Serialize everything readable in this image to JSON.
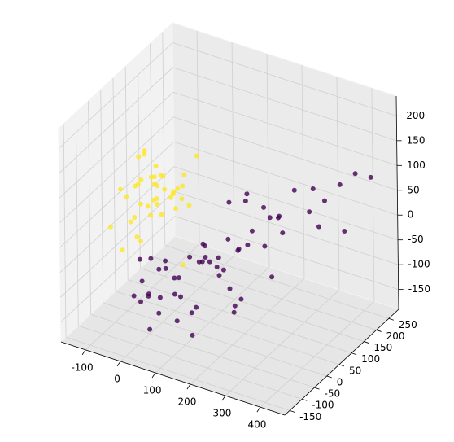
{
  "chart_data": {
    "type": "scatter3d",
    "xlim": [
      -170,
      470
    ],
    "ylim": [
      -170,
      290
    ],
    "zlim": [
      -190,
      240
    ],
    "xticks": [
      -100,
      0,
      100,
      200,
      300,
      400
    ],
    "yticks": [
      -150,
      -100,
      -50,
      0,
      50,
      100,
      150,
      200,
      250
    ],
    "zticks": [
      -150,
      -100,
      -50,
      0,
      50,
      100,
      150,
      200
    ],
    "grid": true,
    "series": [
      {
        "color": "#440154",
        "x": [
          20,
          50,
          80,
          110,
          140,
          170,
          200,
          230,
          260,
          290,
          0,
          30,
          60,
          90,
          120,
          150,
          180,
          210,
          240,
          10,
          40,
          70,
          100,
          130,
          160,
          190,
          220,
          -20,
          5,
          35,
          65,
          95,
          125,
          155,
          185,
          215,
          245,
          275,
          310,
          340,
          370,
          400,
          430,
          60,
          90,
          120,
          150,
          -10,
          25,
          55,
          85,
          115,
          145,
          175,
          205,
          235,
          265,
          300,
          330,
          360
        ],
        "y": [
          -40,
          -20,
          0,
          20,
          -60,
          10,
          30,
          -30,
          50,
          80,
          -80,
          -50,
          -10,
          40,
          60,
          -90,
          20,
          70,
          100,
          -100,
          -70,
          -30,
          10,
          90,
          120,
          40,
          -20,
          -60,
          -120,
          -100,
          -40,
          30,
          0,
          50,
          80,
          110,
          130,
          150,
          160,
          180,
          200,
          220,
          240,
          -70,
          -110,
          -50,
          20,
          -30,
          -90,
          -130,
          -60,
          60,
          -10,
          100,
          30,
          140,
          70,
          190,
          170,
          230
        ],
        "z": [
          -60,
          -80,
          -40,
          -20,
          -100,
          -50,
          -10,
          -90,
          0,
          20,
          -70,
          -110,
          -120,
          -30,
          -60,
          -140,
          -90,
          10,
          30,
          -100,
          -130,
          -70,
          -50,
          40,
          50,
          -20,
          -110,
          -40,
          -80,
          -150,
          -100,
          -60,
          -30,
          -10,
          60,
          40,
          20,
          70,
          30,
          50,
          80,
          100,
          90,
          -20,
          -10,
          -120,
          -70,
          -50,
          -90,
          -60,
          -140,
          -80,
          -30,
          -40,
          -110,
          10,
          -70,
          60,
          0,
          -30
        ]
      },
      {
        "color": "#fde725",
        "x": [
          -100,
          -80,
          -60,
          -40,
          -20,
          0,
          20,
          -90,
          -70,
          -50,
          -30,
          -10,
          10,
          30,
          -110,
          -85,
          -65,
          -45,
          -25,
          -5,
          15,
          -75,
          -55,
          -35,
          -15,
          5,
          25,
          45,
          -95,
          -60,
          -40,
          -20,
          0,
          -70,
          -50,
          -30,
          -10,
          40,
          60,
          -80
        ],
        "y": [
          0,
          20,
          -20,
          40,
          10,
          -30,
          30,
          60,
          -10,
          50,
          -40,
          80,
          0,
          70,
          -50,
          30,
          90,
          -60,
          20,
          100,
          -20,
          40,
          -80,
          10,
          60,
          -50,
          110,
          20,
          -30,
          0,
          30,
          -70,
          50,
          70,
          -10,
          90,
          -40,
          30,
          0,
          120
        ],
        "z": [
          40,
          60,
          80,
          20,
          50,
          70,
          30,
          100,
          10,
          90,
          60,
          40,
          80,
          20,
          0,
          110,
          50,
          30,
          70,
          60,
          40,
          120,
          -20,
          90,
          30,
          50,
          100,
          60,
          70,
          -40,
          80,
          10,
          50,
          40,
          90,
          20,
          60,
          80,
          -60,
          30
        ]
      }
    ]
  }
}
